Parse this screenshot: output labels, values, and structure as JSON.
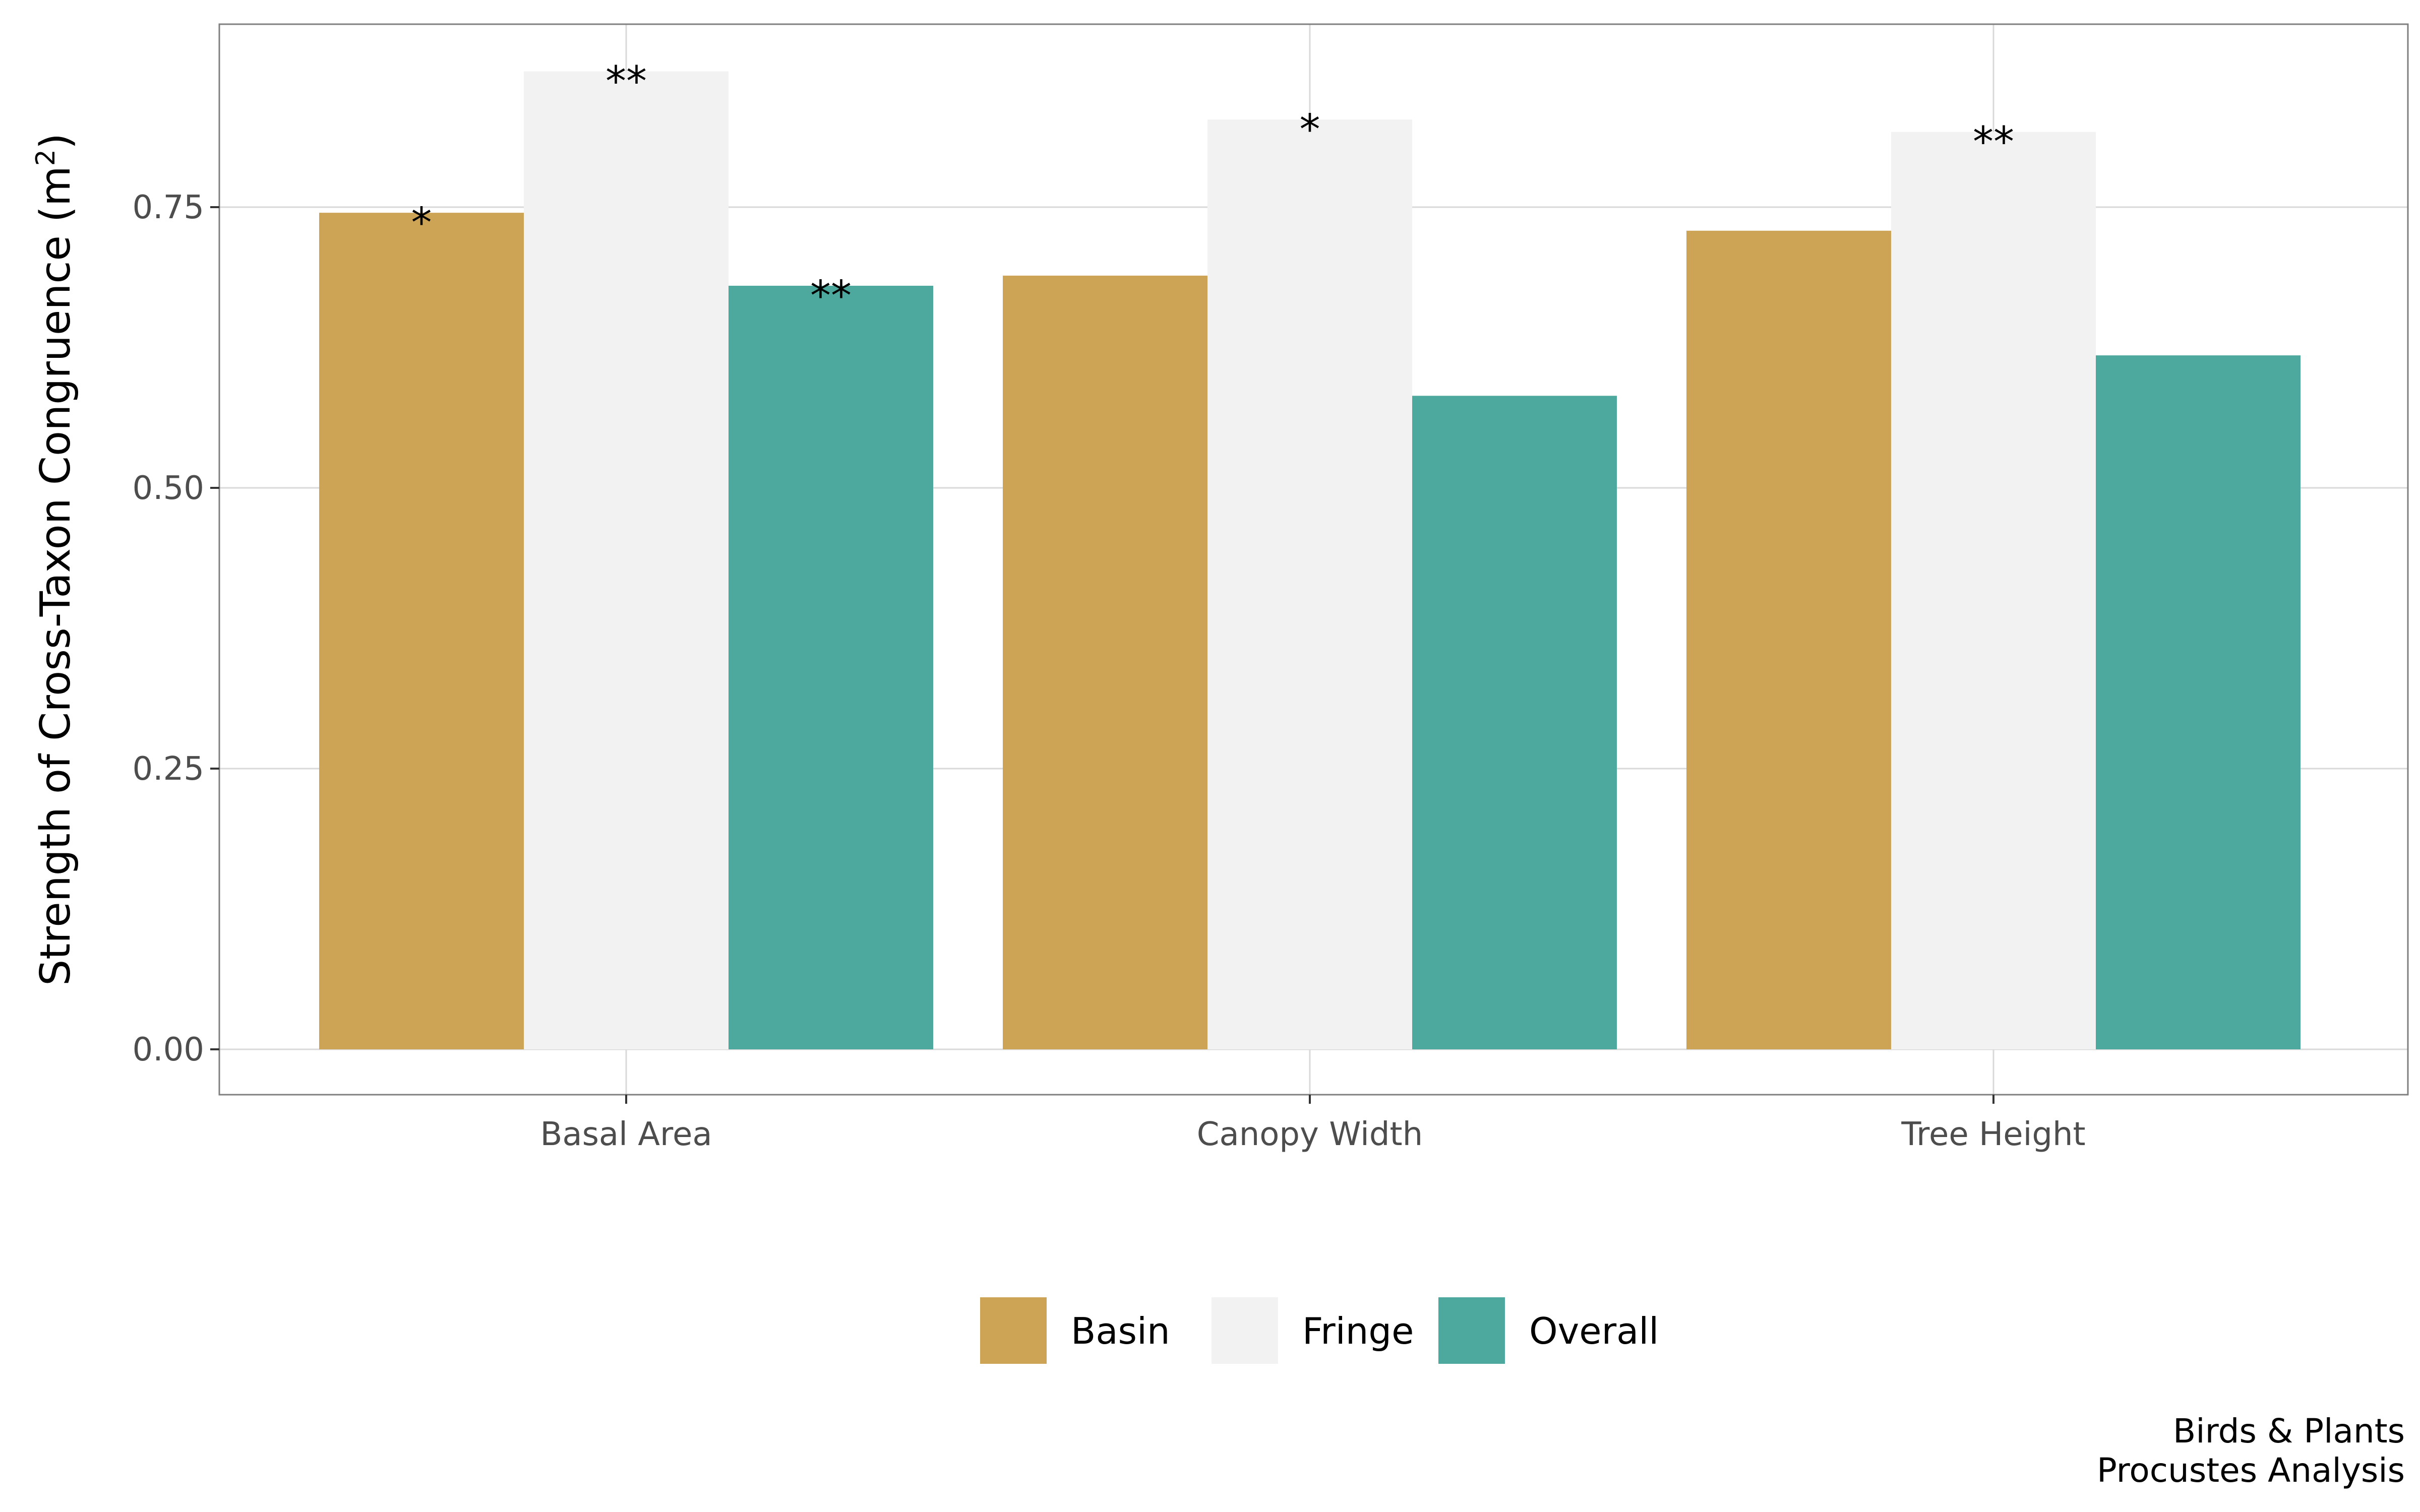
{
  "chart_data": {
    "type": "bar",
    "title": "",
    "xlabel": "",
    "ylabel": "Strength of Cross-Taxon Congruence (m",
    "ylabel_superscript": "2",
    "ylabel_close": ")",
    "categories": [
      "Basal Area",
      "Canopy Width",
      "Tree Height"
    ],
    "series": [
      {
        "name": "Basin",
        "color": "#CDA355",
        "values": [
          0.745,
          0.689,
          0.729
        ],
        "significance": [
          "*",
          "",
          ""
        ]
      },
      {
        "name": "Fringe",
        "color": "#F2F2F2",
        "values": [
          0.871,
          0.828,
          0.817
        ],
        "significance": [
          "**",
          "*",
          "**"
        ]
      },
      {
        "name": "Overall",
        "color": "#4DA89D",
        "values": [
          0.68,
          0.582,
          0.618
        ],
        "significance": [
          "**",
          "",
          ""
        ]
      }
    ],
    "ylim": [
      0,
      0.9
    ],
    "yticks": [
      0.0,
      0.25,
      0.5,
      0.75
    ],
    "ytick_labels": [
      "0.00",
      "0.25",
      "0.50",
      "0.75"
    ],
    "grid": true,
    "legend_position": "bottom",
    "caption": [
      "Birds & Plants",
      "Procustes Analysis"
    ]
  }
}
